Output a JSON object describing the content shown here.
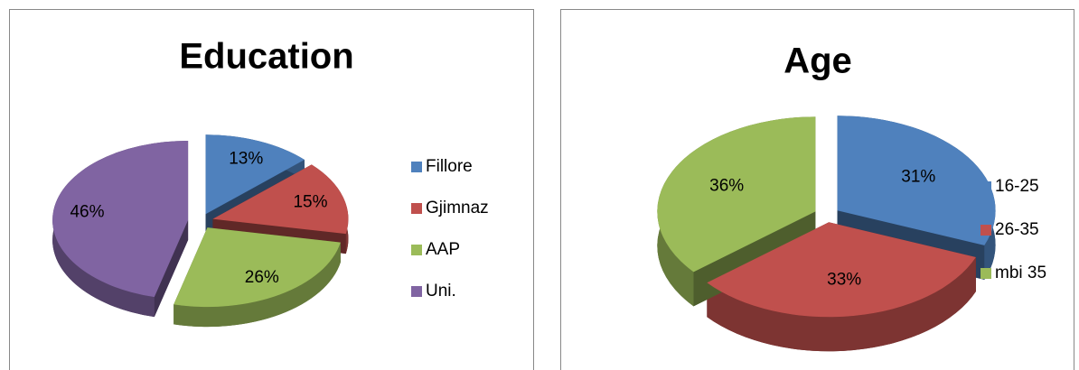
{
  "chart_data": [
    {
      "type": "pie",
      "title": "Education",
      "categories": [
        "Fillore",
        "Gjimnaz",
        "AAP",
        "Uni."
      ],
      "values": [
        13,
        15,
        26,
        46
      ],
      "value_labels": [
        "13%",
        "15%",
        "26%",
        "46%"
      ],
      "colors": [
        "#4f81bd",
        "#c0504d",
        "#9bbb59",
        "#8064a2"
      ],
      "legend": "right"
    },
    {
      "type": "pie",
      "title": "Age",
      "categories": [
        "16-25",
        "26-35",
        "mbi 35"
      ],
      "values": [
        31,
        33,
        36
      ],
      "value_labels": [
        "31%",
        "33%",
        "36%"
      ],
      "colors": [
        "#4f81bd",
        "#c0504d",
        "#9bbb59"
      ],
      "legend": "right"
    }
  ]
}
